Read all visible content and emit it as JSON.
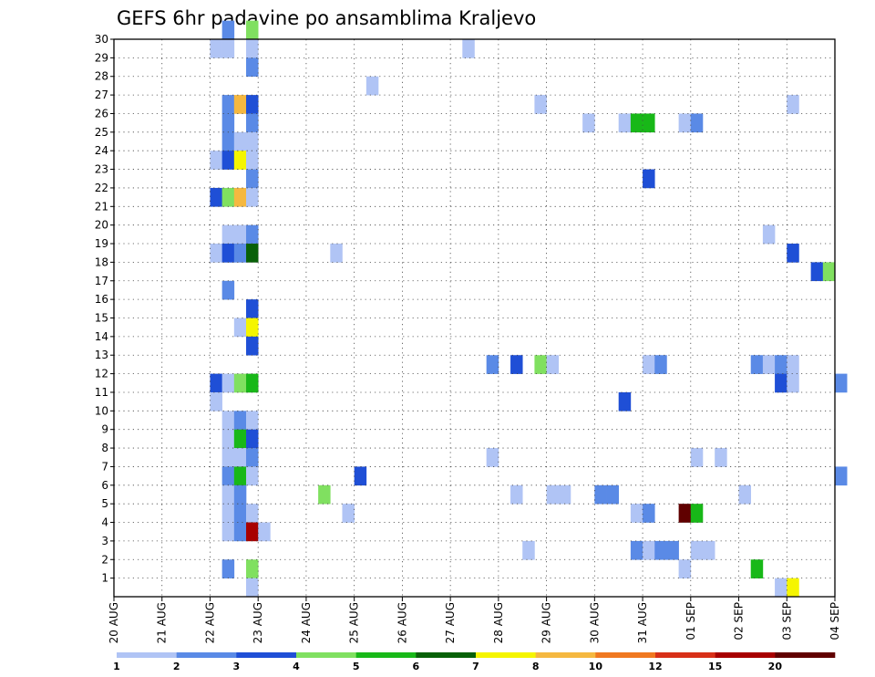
{
  "chart_data": {
    "type": "heatmap",
    "title": "GEFS 6hr padavine po ansamblima Kraljevo",
    "x_tick_labels": [
      "20 AUG",
      "21 AUG",
      "22 AUG",
      "23 AUG",
      "24 AUG",
      "25 AUG",
      "26 AUG",
      "27 AUG",
      "28 AUG",
      "29 AUG",
      "30 AUG",
      "31 AUG",
      "01 SEP",
      "02 SEP",
      "03 SEP",
      "04 SEP"
    ],
    "y_tick_labels": [
      "1",
      "2",
      "3",
      "4",
      "5",
      "6",
      "7",
      "8",
      "9",
      "10",
      "11",
      "12",
      "13",
      "14",
      "15",
      "16",
      "17",
      "18",
      "19",
      "20",
      "21",
      "22",
      "23",
      "24",
      "25",
      "26",
      "27",
      "28",
      "29",
      "30"
    ],
    "y_range": [
      0,
      30
    ],
    "x_steps_per_day": 4,
    "grid": true,
    "colorbar": {
      "labels": [
        "1",
        "2",
        "3",
        "4",
        "5",
        "6",
        "7",
        "8",
        "10",
        "12",
        "15",
        "20"
      ],
      "colors": [
        "#b0c4f5",
        "#5a8ae6",
        "#1f4fd6",
        "#80e060",
        "#18b818",
        "#086008",
        "#f5f500",
        "#f5b840",
        "#f07820",
        "#d83018",
        "#a80000",
        "#600000"
      ]
    },
    "cells": [
      {
        "member": 30,
        "step": 9,
        "level": 2
      },
      {
        "member": 30,
        "step": 11,
        "level": 4
      },
      {
        "member": 29,
        "step": 8,
        "level": 1
      },
      {
        "member": 29,
        "step": 9,
        "level": 1
      },
      {
        "member": 29,
        "step": 11,
        "level": 1
      },
      {
        "member": 29,
        "step": 29,
        "level": 1
      },
      {
        "member": 28,
        "step": 11,
        "level": 2
      },
      {
        "member": 27,
        "step": 21,
        "level": 1
      },
      {
        "member": 26,
        "step": 9,
        "level": 2
      },
      {
        "member": 26,
        "step": 10,
        "level": 8
      },
      {
        "member": 26,
        "step": 11,
        "level": 3
      },
      {
        "member": 26,
        "step": 35,
        "level": 1
      },
      {
        "member": 26,
        "step": 56,
        "level": 1
      },
      {
        "member": 25,
        "step": 9,
        "level": 2
      },
      {
        "member": 25,
        "step": 11,
        "level": 2
      },
      {
        "member": 25,
        "step": 39,
        "level": 1
      },
      {
        "member": 25,
        "step": 42,
        "level": 1
      },
      {
        "member": 25,
        "step": 43,
        "level": 5
      },
      {
        "member": 25,
        "step": 44,
        "level": 5
      },
      {
        "member": 25,
        "step": 47,
        "level": 1
      },
      {
        "member": 25,
        "step": 48,
        "level": 2
      },
      {
        "member": 24,
        "step": 9,
        "level": 2
      },
      {
        "member": 24,
        "step": 10,
        "level": 1
      },
      {
        "member": 24,
        "step": 11,
        "level": 1
      },
      {
        "member": 23,
        "step": 8,
        "level": 1
      },
      {
        "member": 23,
        "step": 9,
        "level": 3
      },
      {
        "member": 23,
        "step": 10,
        "level": 7
      },
      {
        "member": 23,
        "step": 11,
        "level": 1
      },
      {
        "member": 22,
        "step": 11,
        "level": 2
      },
      {
        "member": 22,
        "step": 44,
        "level": 3
      },
      {
        "member": 21,
        "step": 8,
        "level": 3
      },
      {
        "member": 21,
        "step": 9,
        "level": 4
      },
      {
        "member": 21,
        "step": 10,
        "level": 8
      },
      {
        "member": 21,
        "step": 11,
        "level": 1
      },
      {
        "member": 19,
        "step": 9,
        "level": 1
      },
      {
        "member": 19,
        "step": 10,
        "level": 1
      },
      {
        "member": 19,
        "step": 11,
        "level": 2
      },
      {
        "member": 19,
        "step": 54,
        "level": 1
      },
      {
        "member": 18,
        "step": 8,
        "level": 1
      },
      {
        "member": 18,
        "step": 9,
        "level": 3
      },
      {
        "member": 18,
        "step": 10,
        "level": 2
      },
      {
        "member": 18,
        "step": 11,
        "level": 6
      },
      {
        "member": 18,
        "step": 18,
        "level": 1
      },
      {
        "member": 18,
        "step": 56,
        "level": 3
      },
      {
        "member": 17,
        "step": 58,
        "level": 3
      },
      {
        "member": 17,
        "step": 59,
        "level": 4
      },
      {
        "member": 16,
        "step": 9,
        "level": 2
      },
      {
        "member": 15,
        "step": 11,
        "level": 3
      },
      {
        "member": 14,
        "step": 10,
        "level": 1
      },
      {
        "member": 14,
        "step": 11,
        "level": 7
      },
      {
        "member": 13,
        "step": 11,
        "level": 3
      },
      {
        "member": 12,
        "step": 31,
        "level": 2
      },
      {
        "member": 12,
        "step": 33,
        "level": 3
      },
      {
        "member": 12,
        "step": 35,
        "level": 4
      },
      {
        "member": 12,
        "step": 36,
        "level": 1
      },
      {
        "member": 12,
        "step": 44,
        "level": 1
      },
      {
        "member": 12,
        "step": 45,
        "level": 2
      },
      {
        "member": 12,
        "step": 53,
        "level": 2
      },
      {
        "member": 12,
        "step": 54,
        "level": 1
      },
      {
        "member": 12,
        "step": 55,
        "level": 2
      },
      {
        "member": 12,
        "step": 56,
        "level": 1
      },
      {
        "member": 11,
        "step": 8,
        "level": 3
      },
      {
        "member": 11,
        "step": 9,
        "level": 1
      },
      {
        "member": 11,
        "step": 10,
        "level": 4
      },
      {
        "member": 11,
        "step": 11,
        "level": 5
      },
      {
        "member": 11,
        "step": 55,
        "level": 3
      },
      {
        "member": 11,
        "step": 56,
        "level": 1
      },
      {
        "member": 11,
        "step": 60,
        "level": 2
      },
      {
        "member": 10,
        "step": 8,
        "level": 1
      },
      {
        "member": 10,
        "step": 42,
        "level": 3
      },
      {
        "member": 9,
        "step": 9,
        "level": 1
      },
      {
        "member": 9,
        "step": 10,
        "level": 2
      },
      {
        "member": 9,
        "step": 11,
        "level": 1
      },
      {
        "member": 8,
        "step": 9,
        "level": 1
      },
      {
        "member": 8,
        "step": 10,
        "level": 5
      },
      {
        "member": 8,
        "step": 11,
        "level": 3
      },
      {
        "member": 7,
        "step": 9,
        "level": 1
      },
      {
        "member": 7,
        "step": 10,
        "level": 1
      },
      {
        "member": 7,
        "step": 11,
        "level": 2
      },
      {
        "member": 7,
        "step": 31,
        "level": 1
      },
      {
        "member": 7,
        "step": 48,
        "level": 1
      },
      {
        "member": 7,
        "step": 50,
        "level": 1
      },
      {
        "member": 6,
        "step": 9,
        "level": 2
      },
      {
        "member": 6,
        "step": 10,
        "level": 5
      },
      {
        "member": 6,
        "step": 11,
        "level": 1
      },
      {
        "member": 6,
        "step": 20,
        "level": 3
      },
      {
        "member": 6,
        "step": 60,
        "level": 2
      },
      {
        "member": 5,
        "step": 9,
        "level": 1
      },
      {
        "member": 5,
        "step": 10,
        "level": 2
      },
      {
        "member": 5,
        "step": 17,
        "level": 4
      },
      {
        "member": 5,
        "step": 33,
        "level": 1
      },
      {
        "member": 5,
        "step": 36,
        "level": 1
      },
      {
        "member": 5,
        "step": 37,
        "level": 1
      },
      {
        "member": 5,
        "step": 40,
        "level": 2
      },
      {
        "member": 5,
        "step": 41,
        "level": 2
      },
      {
        "member": 5,
        "step": 52,
        "level": 1
      },
      {
        "member": 4,
        "step": 9,
        "level": 1
      },
      {
        "member": 4,
        "step": 10,
        "level": 2
      },
      {
        "member": 4,
        "step": 11,
        "level": 1
      },
      {
        "member": 4,
        "step": 19,
        "level": 1
      },
      {
        "member": 4,
        "step": 43,
        "level": 1
      },
      {
        "member": 4,
        "step": 44,
        "level": 2
      },
      {
        "member": 4,
        "step": 47,
        "level": 12
      },
      {
        "member": 4,
        "step": 48,
        "level": 5
      },
      {
        "member": 3,
        "step": 9,
        "level": 1
      },
      {
        "member": 3,
        "step": 10,
        "level": 2
      },
      {
        "member": 3,
        "step": 11,
        "level": 11
      },
      {
        "member": 3,
        "step": 12,
        "level": 1
      },
      {
        "member": 2,
        "step": 34,
        "level": 1
      },
      {
        "member": 2,
        "step": 43,
        "level": 2
      },
      {
        "member": 2,
        "step": 44,
        "level": 1
      },
      {
        "member": 2,
        "step": 45,
        "level": 2
      },
      {
        "member": 2,
        "step": 46,
        "level": 2
      },
      {
        "member": 2,
        "step": 48,
        "level": 1
      },
      {
        "member": 2,
        "step": 49,
        "level": 1
      },
      {
        "member": 1,
        "step": 9,
        "level": 2
      },
      {
        "member": 1,
        "step": 11,
        "level": 4
      },
      {
        "member": 1,
        "step": 47,
        "level": 1
      },
      {
        "member": 1,
        "step": 53,
        "level": 5
      },
      {
        "member": 0,
        "step": 11,
        "level": 1
      },
      {
        "member": 0,
        "step": 55,
        "level": 1
      },
      {
        "member": 0,
        "step": 56,
        "level": 7
      }
    ]
  }
}
